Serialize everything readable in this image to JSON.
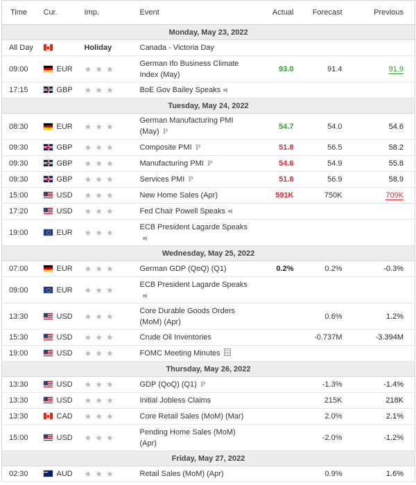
{
  "headers": {
    "time": "Time",
    "cur": "Cur.",
    "imp": "Imp.",
    "event": "Event",
    "actual": "Actual",
    "forecast": "Forecast",
    "previous": "Previous"
  },
  "colors": {
    "positive": "#2ca02c",
    "negative": "#e0262e",
    "star": "#b9b9b9"
  },
  "days": [
    {
      "date": "Monday, May 23, 2022",
      "rows": [
        {
          "time": "All Day",
          "flag": "ca",
          "currency": "",
          "holiday": "Holiday",
          "event": "Canada - Victoria Day",
          "tall": false
        },
        {
          "time": "09:00",
          "flag": "de",
          "currency": "EUR",
          "stars": "★★★",
          "event": "German Ifo Business Climate Index (May)",
          "actual": "93.0",
          "actual_color": "green",
          "forecast": "91.4",
          "previous": "91.9",
          "previous_color": "green",
          "previous_underline": true,
          "tall": true
        },
        {
          "time": "17:15",
          "flag": "gb",
          "currency": "GBP",
          "stars": "★★★",
          "event": "BoE Gov Bailey Speaks",
          "icon": "speaker-icon",
          "tall": false
        }
      ]
    },
    {
      "date": "Tuesday, May 24, 2022",
      "rows": [
        {
          "time": "08:30",
          "flag": "de",
          "currency": "EUR",
          "stars": "★★★",
          "event": "German Manufacturing PMI (May)",
          "icon": "preliminary-icon",
          "actual": "54.7",
          "actual_color": "green",
          "forecast": "54.0",
          "previous": "54.6",
          "tall": true
        },
        {
          "time": "09:30",
          "flag": "gb",
          "currency": "GBP",
          "stars": "★★★",
          "event": "Composite PMI",
          "icon": "preliminary-icon",
          "actual": "51.8",
          "actual_color": "red",
          "forecast": "56.5",
          "previous": "58.2",
          "tall": false
        },
        {
          "time": "09:30",
          "flag": "gb",
          "currency": "GBP",
          "stars": "★★★",
          "event": "Manufacturing PMI",
          "icon": "preliminary-icon",
          "actual": "54.6",
          "actual_color": "red",
          "forecast": "54.9",
          "previous": "55.8",
          "tall": false
        },
        {
          "time": "09:30",
          "flag": "gb",
          "currency": "GBP",
          "stars": "★★★",
          "event": "Services PMI",
          "icon": "preliminary-icon",
          "actual": "51.8",
          "actual_color": "red",
          "forecast": "56.9",
          "previous": "58.9",
          "tall": false
        },
        {
          "time": "15:00",
          "flag": "us",
          "currency": "USD",
          "stars": "★★★",
          "event": "New Home Sales (Apr)",
          "actual": "591K",
          "actual_color": "red",
          "forecast": "750K",
          "previous": "709K",
          "previous_color": "red",
          "previous_underline": true,
          "tall": false
        },
        {
          "time": "17:20",
          "flag": "us",
          "currency": "USD",
          "stars": "★★★",
          "event": "Fed Chair Powell Speaks",
          "icon": "speaker-icon",
          "tall": false
        },
        {
          "time": "19:00",
          "flag": "eu",
          "currency": "EUR",
          "stars": "★★★",
          "event": "ECB President Lagarde Speaks",
          "icon": "speaker-icon",
          "tall": true
        }
      ]
    },
    {
      "date": "Wednesday, May 25, 2022",
      "rows": [
        {
          "time": "07:00",
          "flag": "de",
          "currency": "EUR",
          "stars": "★★★",
          "event": "German GDP (QoQ) (Q1)",
          "actual": "0.2%",
          "actual_color": "black",
          "forecast": "0.2%",
          "previous": "-0.3%",
          "tall": false
        },
        {
          "time": "09:00",
          "flag": "eu",
          "currency": "EUR",
          "stars": "★★★",
          "event": "ECB President Lagarde Speaks",
          "icon": "speaker-icon",
          "tall": true
        },
        {
          "time": "13:30",
          "flag": "us",
          "currency": "USD",
          "stars": "★★★",
          "event": "Core Durable Goods Orders (MoM) (Apr)",
          "forecast": "0.6%",
          "previous": "1.2%",
          "tall": true
        },
        {
          "time": "15:30",
          "flag": "us",
          "currency": "USD",
          "stars": "★★★",
          "event": "Crude Oil Inventories",
          "forecast": "-0.737M",
          "previous": "-3.394M",
          "tall": false
        },
        {
          "time": "19:00",
          "flag": "us",
          "currency": "USD",
          "stars": "★★★",
          "event": "FOMC Meeting Minutes",
          "icon": "document-icon",
          "tall": false
        }
      ]
    },
    {
      "date": "Thursday, May 26, 2022",
      "rows": [
        {
          "time": "13:30",
          "flag": "us",
          "currency": "USD",
          "stars": "★★★",
          "event": "GDP (QoQ) (Q1)",
          "icon": "preliminary-icon",
          "forecast": "-1.3%",
          "previous": "-1.4%",
          "tall": false
        },
        {
          "time": "13:30",
          "flag": "us",
          "currency": "USD",
          "stars": "★★★",
          "event": "Initial Jobless Claims",
          "forecast": "215K",
          "previous": "218K",
          "tall": false
        },
        {
          "time": "13:30",
          "flag": "ca",
          "currency": "CAD",
          "stars": "★★★",
          "event": "Core Retail Sales (MoM) (Mar)",
          "forecast": "2.0%",
          "previous": "2.1%",
          "tall": false
        },
        {
          "time": "15:00",
          "flag": "us",
          "currency": "USD",
          "stars": "★★★",
          "event": "Pending Home Sales (MoM) (Apr)",
          "forecast": "-2.0%",
          "previous": "-1.2%",
          "tall": true
        }
      ]
    },
    {
      "date": "Friday, May 27, 2022",
      "rows": [
        {
          "time": "02:30",
          "flag": "au",
          "currency": "AUD",
          "stars": "★★★",
          "event": "Retail Sales (MoM) (Apr)",
          "forecast": "0.9%",
          "previous": "1.6%",
          "tall": false
        }
      ]
    }
  ]
}
